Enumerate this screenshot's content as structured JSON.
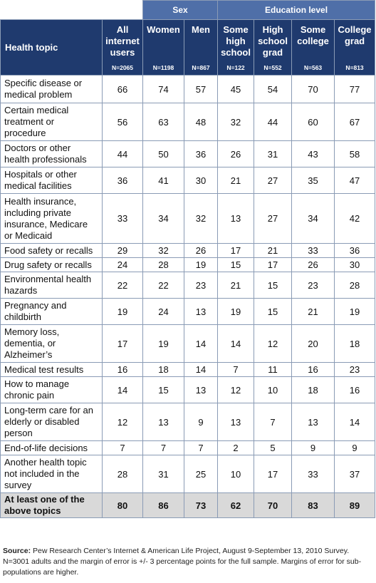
{
  "groups": {
    "sex": "Sex",
    "education": "Education level"
  },
  "columns": {
    "topic": "Health topic",
    "all": {
      "lines": [
        "All",
        "internet",
        "users"
      ],
      "n": "N=2065"
    },
    "women": {
      "lines": [
        "Women"
      ],
      "n": "N=1198"
    },
    "men": {
      "lines": [
        "Men"
      ],
      "n": "N=867"
    },
    "some_hs": {
      "lines": [
        "Some",
        "high",
        "school"
      ],
      "n": "N=122"
    },
    "hs_grad": {
      "lines": [
        "High",
        "school",
        "grad"
      ],
      "n": "N=552"
    },
    "some_college": {
      "lines": [
        "Some",
        "college"
      ],
      "n": "N=563"
    },
    "college_grad": {
      "lines": [
        "College",
        "grad"
      ],
      "n": "N=813"
    }
  },
  "rows": [
    {
      "topic": [
        "Specific disease or",
        "medical problem"
      ],
      "values": [
        "66",
        "74",
        "57",
        "45",
        "54",
        "70",
        "77"
      ]
    },
    {
      "topic": [
        "Certain medical",
        "treatment or",
        "procedure"
      ],
      "values": [
        "56",
        "63",
        "48",
        "32",
        "44",
        "60",
        "67"
      ]
    },
    {
      "topic": [
        "Doctors or other",
        "health professionals"
      ],
      "values": [
        "44",
        "50",
        "36",
        "26",
        "31",
        "43",
        "58"
      ]
    },
    {
      "topic": [
        "Hospitals or other",
        "medical facilities"
      ],
      "values": [
        "36",
        "41",
        "30",
        "21",
        "27",
        "35",
        "47"
      ]
    },
    {
      "topic": [
        "Health insurance,",
        "including private",
        "insurance, Medicare",
        "or Medicaid"
      ],
      "values": [
        "33",
        "34",
        "32",
        "13",
        "27",
        "34",
        "42"
      ]
    },
    {
      "topic": [
        "Food safety or recalls"
      ],
      "values": [
        "29",
        "32",
        "26",
        "17",
        "21",
        "33",
        "36"
      ]
    },
    {
      "topic": [
        "Drug safety or recalls"
      ],
      "values": [
        "24",
        "28",
        "19",
        "15",
        "17",
        "26",
        "30"
      ]
    },
    {
      "topic": [
        "Environmental health",
        "hazards"
      ],
      "values": [
        "22",
        "22",
        "23",
        "21",
        "15",
        "23",
        "28"
      ]
    },
    {
      "topic": [
        "Pregnancy and",
        "childbirth"
      ],
      "values": [
        "19",
        "24",
        "13",
        "19",
        "15",
        "21",
        "19"
      ]
    },
    {
      "topic": [
        "Memory loss,",
        "dementia, or",
        "Alzheimer’s"
      ],
      "values": [
        "17",
        "19",
        "14",
        "14",
        "12",
        "20",
        "18"
      ]
    },
    {
      "topic": [
        "Medical test results"
      ],
      "values": [
        "16",
        "18",
        "14",
        "7",
        "11",
        "16",
        "23"
      ]
    },
    {
      "topic": [
        "How to manage",
        "chronic pain"
      ],
      "values": [
        "14",
        "15",
        "13",
        "12",
        "10",
        "18",
        "16"
      ]
    },
    {
      "topic": [
        "Long-term care for an",
        "elderly or disabled",
        "person"
      ],
      "values": [
        "12",
        "13",
        "9",
        "13",
        "7",
        "13",
        "14"
      ]
    },
    {
      "topic": [
        "End-of-life decisions"
      ],
      "values": [
        "7",
        "7",
        "7",
        "2",
        "5",
        "9",
        "9"
      ]
    },
    {
      "topic": [
        "Another health topic",
        "not included in the",
        "survey"
      ],
      "values": [
        "28",
        "31",
        "25",
        "10",
        "17",
        "33",
        "37"
      ]
    },
    {
      "topic": [
        "At least one of the",
        "above topics"
      ],
      "values": [
        "80",
        "86",
        "73",
        "62",
        "70",
        "83",
        "89"
      ]
    }
  ],
  "note": {
    "label": "Source:",
    "text": " Pew Research Center’s Internet & American Life Project, August 9-September 13, 2010 Survey. N=3001 adults and the margin of error is +/- 3 percentage points for the full sample. Margins of error for sub-populations are higher."
  },
  "colors": {
    "group_header": "#4f6fa8",
    "column_header": "#1f3a6e",
    "last_row": "#d9d9d9",
    "border": "#8a9bb5"
  }
}
